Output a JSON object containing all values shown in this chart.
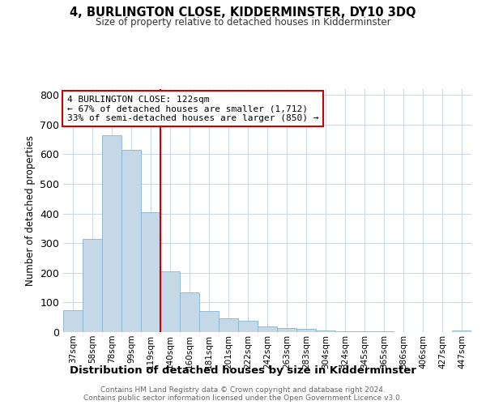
{
  "title": "4, BURLINGTON CLOSE, KIDDERMINSTER, DY10 3DQ",
  "subtitle": "Size of property relative to detached houses in Kidderminster",
  "xlabel": "Distribution of detached houses by size in Kidderminster",
  "ylabel": "Number of detached properties",
  "categories": [
    "37sqm",
    "58sqm",
    "78sqm",
    "99sqm",
    "119sqm",
    "140sqm",
    "160sqm",
    "181sqm",
    "201sqm",
    "222sqm",
    "242sqm",
    "263sqm",
    "283sqm",
    "304sqm",
    "324sqm",
    "345sqm",
    "365sqm",
    "386sqm",
    "406sqm",
    "427sqm",
    "447sqm"
  ],
  "values": [
    75,
    315,
    665,
    615,
    405,
    205,
    135,
    70,
    47,
    37,
    20,
    15,
    10,
    5,
    3,
    3,
    2,
    1,
    1,
    1,
    5
  ],
  "bar_color": "#c5d8e8",
  "bar_edgecolor": "#8ab4cc",
  "vline_color": "#cc0000",
  "annotation_text": "4 BURLINGTON CLOSE: 122sqm\n← 67% of detached houses are smaller (1,712)\n33% of semi-detached houses are larger (850) →",
  "annotation_box_color": "#ffffff",
  "annotation_box_edgecolor": "#cc0000",
  "ylim": [
    0,
    820
  ],
  "yticks": [
    0,
    100,
    200,
    300,
    400,
    500,
    600,
    700,
    800
  ],
  "footer1": "Contains HM Land Registry data © Crown copyright and database right 2024.",
  "footer2": "Contains public sector information licensed under the Open Government Licence v3.0.",
  "bg_color": "#ffffff",
  "grid_color": "#c8d8e8"
}
